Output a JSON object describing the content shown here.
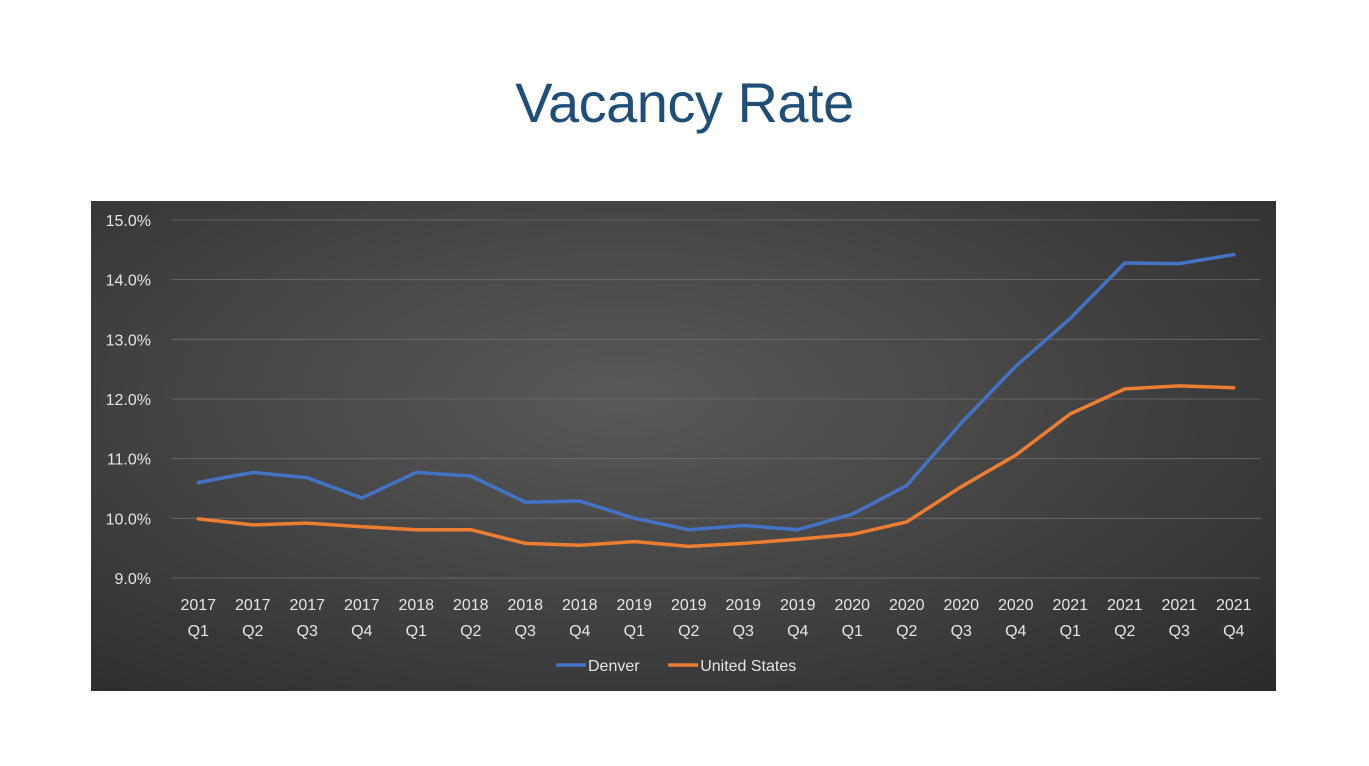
{
  "title": "Vacancy Rate",
  "chart_data": {
    "type": "line",
    "title": "Vacancy Rate",
    "xlabel": "",
    "ylabel": "",
    "categories": [
      [
        "2017",
        "Q1"
      ],
      [
        "2017",
        "Q2"
      ],
      [
        "2017",
        "Q3"
      ],
      [
        "2017",
        "Q4"
      ],
      [
        "2018",
        "Q1"
      ],
      [
        "2018",
        "Q2"
      ],
      [
        "2018",
        "Q3"
      ],
      [
        "2018",
        "Q4"
      ],
      [
        "2019",
        "Q1"
      ],
      [
        "2019",
        "Q2"
      ],
      [
        "2019",
        "Q3"
      ],
      [
        "2019",
        "Q4"
      ],
      [
        "2020",
        "Q1"
      ],
      [
        "2020",
        "Q2"
      ],
      [
        "2020",
        "Q3"
      ],
      [
        "2020",
        "Q4"
      ],
      [
        "2021",
        "Q1"
      ],
      [
        "2021",
        "Q2"
      ],
      [
        "2021",
        "Q3"
      ],
      [
        "2021",
        "Q4"
      ]
    ],
    "ylim": [
      9.0,
      15.0
    ],
    "yticks": [
      "9.0%",
      "10.0%",
      "11.0%",
      "12.0%",
      "13.0%",
      "14.0%",
      "15.0%"
    ],
    "grid": true,
    "legend_position": "bottom",
    "series": [
      {
        "name": "Denver",
        "color": "#4472c4",
        "values": [
          10.6,
          10.77,
          10.68,
          10.34,
          10.77,
          10.71,
          10.27,
          10.29,
          10.0,
          9.81,
          9.88,
          9.81,
          10.07,
          10.55,
          11.6,
          12.55,
          13.35,
          14.28,
          14.27,
          14.42
        ]
      },
      {
        "name": "United States",
        "color": "#ed7d31",
        "values": [
          9.99,
          9.89,
          9.92,
          9.86,
          9.81,
          9.81,
          9.58,
          9.55,
          9.61,
          9.53,
          9.58,
          9.65,
          9.73,
          9.94,
          10.53,
          11.06,
          11.75,
          12.17,
          12.22,
          12.19
        ]
      }
    ]
  }
}
